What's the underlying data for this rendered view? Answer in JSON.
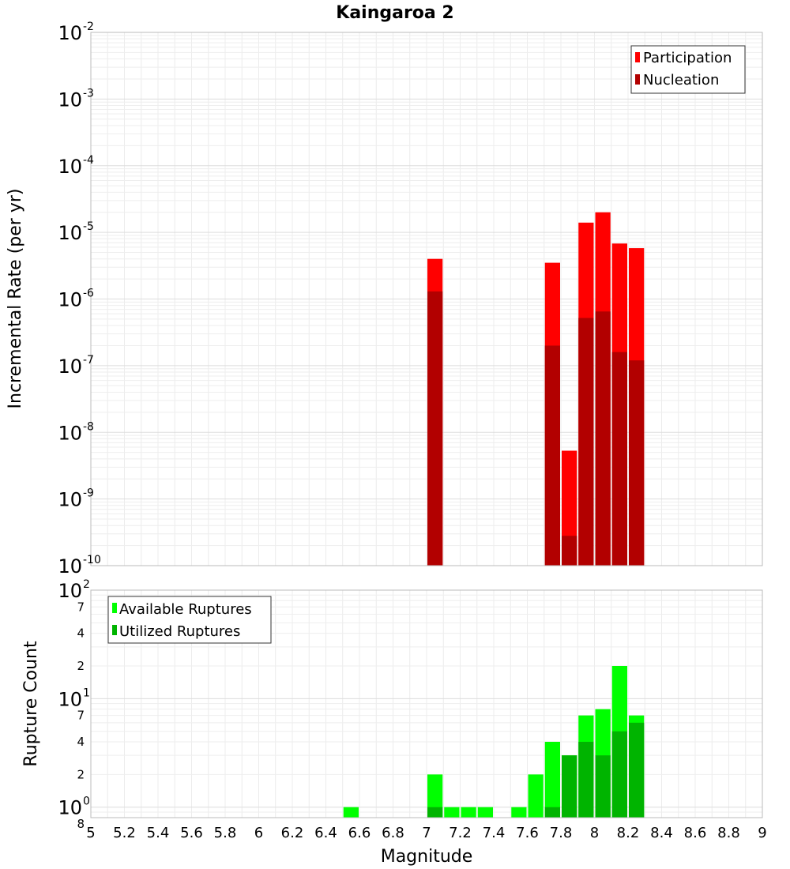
{
  "chart_data": [
    {
      "type": "bar",
      "title": "Kaingaroa 2",
      "ylabel": "Incremental Rate (per yr)",
      "yscale": "log",
      "ylim": [
        1e-10,
        0.01
      ],
      "y_tick_labels": [
        {
          "base": "10",
          "exp": "-10",
          "value": 1e-10
        },
        {
          "base": "10",
          "exp": "-9",
          "value": 1e-09
        },
        {
          "base": "10",
          "exp": "-8",
          "value": 1e-08
        },
        {
          "base": "10",
          "exp": "-7",
          "value": 1e-07
        },
        {
          "base": "10",
          "exp": "-6",
          "value": 1e-06
        },
        {
          "base": "10",
          "exp": "-5",
          "value": 1e-05
        },
        {
          "base": "10",
          "exp": "-4",
          "value": 0.0001
        },
        {
          "base": "10",
          "exp": "-3",
          "value": 0.001
        },
        {
          "base": "10",
          "exp": "-2",
          "value": 0.01
        }
      ],
      "legend_position": "top-right",
      "bin_width": 0.1,
      "series": [
        {
          "name": "Participation",
          "color": "#ff0000",
          "points": [
            {
              "x": 7.05,
              "y": 4e-06
            },
            {
              "x": 7.75,
              "y": 3.5e-06
            },
            {
              "x": 7.85,
              "y": 5.3e-09
            },
            {
              "x": 7.95,
              "y": 1.4e-05
            },
            {
              "x": 8.05,
              "y": 2e-05
            },
            {
              "x": 8.15,
              "y": 6.8e-06
            },
            {
              "x": 8.25,
              "y": 5.8e-06
            }
          ]
        },
        {
          "name": "Nucleation",
          "color": "#b20000",
          "points": [
            {
              "x": 7.05,
              "y": 1.3e-06
            },
            {
              "x": 7.75,
              "y": 2e-07
            },
            {
              "x": 7.85,
              "y": 2.8e-10
            },
            {
              "x": 7.95,
              "y": 5.2e-07
            },
            {
              "x": 8.05,
              "y": 6.5e-07
            },
            {
              "x": 8.15,
              "y": 1.6e-07
            },
            {
              "x": 8.25,
              "y": 1.2e-07
            }
          ]
        }
      ]
    },
    {
      "type": "bar",
      "xlabel": "Magnitude",
      "ylabel": "Rupture Count",
      "yscale": "log",
      "ylim": [
        0.8,
        100
      ],
      "xlim": [
        5,
        9
      ],
      "x_ticks": [
        "5",
        "5.2",
        "5.4",
        "5.6",
        "5.8",
        "6",
        "6.2",
        "6.4",
        "6.6",
        "6.8",
        "7",
        "7.2",
        "7.4",
        "7.6",
        "7.8",
        "8",
        "8.2",
        "8.4",
        "8.6",
        "8.8",
        "9"
      ],
      "y_tick_labels": [
        {
          "base": "10",
          "exp": "0",
          "value": 1
        },
        {
          "base": "10",
          "exp": "1",
          "value": 10
        },
        {
          "base": "10",
          "exp": "2",
          "value": 100
        }
      ],
      "y_minor_labels": [
        {
          "label": "8",
          "value": 0.8
        },
        {
          "label": "2",
          "value": 2
        },
        {
          "label": "4",
          "value": 4
        },
        {
          "label": "7",
          "value": 7
        },
        {
          "label": "2",
          "value": 20
        },
        {
          "label": "4",
          "value": 40
        },
        {
          "label": "7",
          "value": 70
        }
      ],
      "legend_position": "top-left",
      "bin_width": 0.1,
      "series": [
        {
          "name": "Available Ruptures",
          "color": "#00ff00",
          "points": [
            {
              "x": 6.55,
              "y": 1
            },
            {
              "x": 7.05,
              "y": 2
            },
            {
              "x": 7.15,
              "y": 1
            },
            {
              "x": 7.25,
              "y": 1
            },
            {
              "x": 7.35,
              "y": 1
            },
            {
              "x": 7.55,
              "y": 1
            },
            {
              "x": 7.65,
              "y": 2
            },
            {
              "x": 7.75,
              "y": 4
            },
            {
              "x": 7.85,
              "y": 3
            },
            {
              "x": 7.95,
              "y": 7
            },
            {
              "x": 8.05,
              "y": 8
            },
            {
              "x": 8.15,
              "y": 20
            },
            {
              "x": 8.25,
              "y": 7
            }
          ]
        },
        {
          "name": "Utilized Ruptures",
          "color": "#00b400",
          "points": [
            {
              "x": 7.05,
              "y": 1
            },
            {
              "x": 7.75,
              "y": 1
            },
            {
              "x": 7.85,
              "y": 3
            },
            {
              "x": 7.95,
              "y": 4
            },
            {
              "x": 8.05,
              "y": 3
            },
            {
              "x": 8.15,
              "y": 5
            },
            {
              "x": 8.25,
              "y": 6
            }
          ]
        }
      ]
    }
  ]
}
